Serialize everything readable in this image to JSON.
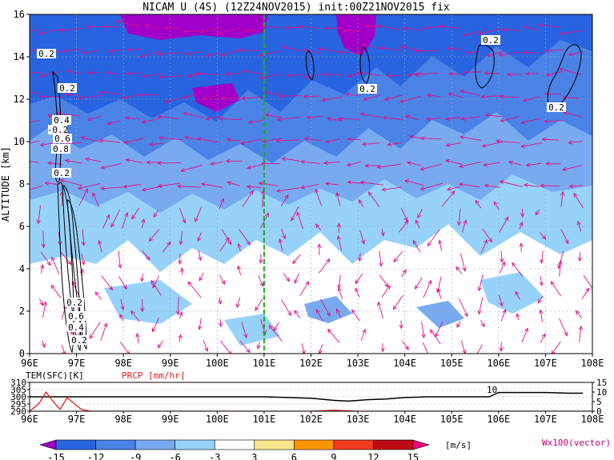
{
  "chart_data": [
    {
      "type": "heatmap",
      "title": "NICAM U (4S) (12Z24NOV2015) init:00Z21NOV2015 fix",
      "xlabel": "",
      "ylabel": "ALTITUDE [km]",
      "xlim": [
        96,
        108
      ],
      "ylim": [
        0,
        16
      ],
      "x_ticks": [
        "96E",
        "97E",
        "98E",
        "99E",
        "100E",
        "101E",
        "102E",
        "103E",
        "104E",
        "105E",
        "106E",
        "107E",
        "108E"
      ],
      "y_ticks": [
        "0",
        "2",
        "4",
        "6",
        "8",
        "10",
        "12",
        "14",
        "16"
      ],
      "grid": true,
      "marker_line_lon": 101,
      "contour_labels": [
        "0.2",
        "0.2",
        "0.2",
        "0.2",
        "0.2",
        "0.4",
        "-0.2",
        "0.6",
        "0.8",
        "0.2",
        "0.2",
        "0.6",
        "0.4",
        "0.2"
      ],
      "colorbar": {
        "levels": [
          "-15",
          "-12",
          "-9",
          "-6",
          "-3",
          "3",
          "6",
          "9",
          "12",
          "15"
        ],
        "colors": [
          "#a000c8",
          "#2864e0",
          "#4a82e6",
          "#78aaf0",
          "#96d2fa",
          "#ffffff",
          "#fae68c",
          "#fa9600",
          "#f03c1e",
          "#be0a14",
          "#f00082"
        ],
        "unit": "[m/s]",
        "vector_note": "Wx100(vector)"
      }
    },
    {
      "type": "line",
      "series": [
        {
          "name": "TEM(SFC)[K]",
          "color": "#000000",
          "x": [
            96,
            96.3,
            96.6,
            97,
            98,
            99,
            100,
            101,
            101.5,
            102,
            102.5,
            102.8,
            103.2,
            103.6,
            104,
            104.5,
            105,
            105.5,
            105.8,
            106,
            106.3,
            107,
            107.5,
            107.8
          ],
          "y": [
            300,
            300,
            300,
            300,
            300,
            300,
            300,
            300,
            299.5,
            299,
            297.5,
            297,
            298,
            298.5,
            299.5,
            300,
            300,
            300,
            300,
            303,
            303,
            303,
            302.5,
            302.5
          ]
        },
        {
          "name": "PRCP [mm/hr]",
          "color": "#e02020",
          "x": [
            96,
            96.2,
            96.35,
            96.5,
            96.65,
            96.8,
            96.95,
            97.1,
            97.3,
            98,
            100,
            102,
            102.5,
            103,
            104,
            106,
            108
          ],
          "y": [
            0,
            4,
            10,
            5,
            1,
            7,
            4,
            1,
            0,
            0,
            0,
            0,
            0.5,
            0,
            0,
            0,
            0
          ]
        }
      ],
      "left_axis": {
        "name": "TEM(SFC)[K]",
        "ticks": [
          "290",
          "295",
          "300",
          "305",
          "310"
        ],
        "range": [
          290,
          310
        ]
      },
      "right_axis": {
        "name": "PRCP [mm/hr]",
        "ticks": [
          "0",
          "5",
          "10",
          "15"
        ],
        "range": [
          0,
          15
        ]
      },
      "x_ticks": [
        "96E",
        "97E",
        "98E",
        "99E",
        "100E",
        "101E",
        "102E",
        "103E",
        "104E",
        "105E",
        "106E",
        "107E",
        "108E"
      ],
      "annotation": "10"
    }
  ]
}
